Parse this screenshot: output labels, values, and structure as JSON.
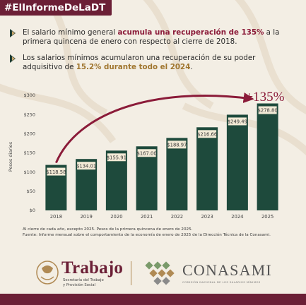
{
  "hashtag": "#ElInformeDeLaDT",
  "bullets": [
    {
      "pre": "El salario mínimo general ",
      "highlight": "acumula una recuperación de 135%",
      "post": " a la primera quincena de enero con respecto al cierre de 2018."
    },
    {
      "pre": "Los salarios mínimos acumularon una recuperación de su poder adquisitivo de ",
      "highlight": "15.2% durante todo el 2024",
      "post": "."
    }
  ],
  "chart_data": {
    "type": "bar",
    "categories": [
      "2018",
      "2019",
      "2020",
      "2021",
      "2022",
      "2023",
      "2024",
      "2025"
    ],
    "values": [
      118.58,
      134.01,
      155.91,
      167.0,
      188.97,
      216.66,
      249.49,
      278.8
    ],
    "value_labels": [
      "$118.58",
      "$134.01",
      "$155.91",
      "$167.00",
      "$188.97",
      "$216.66",
      "$249.49",
      "$278.80"
    ],
    "ylabel": "Pesos diarios",
    "ylim": [
      0,
      300
    ],
    "yticks": [
      0,
      50,
      100,
      150,
      200,
      250,
      300
    ],
    "ytick_labels": [
      "$0",
      "$50",
      "$100",
      "$150",
      "$200",
      "$250",
      "$300"
    ],
    "annotation": "+135%",
    "grid": false,
    "colors": {
      "bar": "#1e4a3c",
      "label_fill": "#f2ead6",
      "label_text": "#3a3a3a",
      "arrow": "#8b1b39",
      "annotation": "#8b1b39"
    }
  },
  "notes": [
    "Al cierre de cada año, excepto 2025. Pesos de la primera quincena de enero de 2025.",
    "Fuente: Informe mensual sobre el comportamiento de la economía de enero de 2025 de la Dirección Técnica de la Conasami."
  ],
  "logos": {
    "trabajo": {
      "name": "Trabajo",
      "sub1": "Secretaría del Trabajo",
      "sub2": "y Previsión Social"
    },
    "conasami": {
      "name": "CONASAMI",
      "sub": "COMISIÓN NACIONAL DE LOS SALARIOS MÍNIMOS"
    }
  },
  "colors": {
    "brand": "#6b1f36",
    "background": "#f3eee4",
    "gold": "#b08a54",
    "green": "#1e4a3c"
  }
}
